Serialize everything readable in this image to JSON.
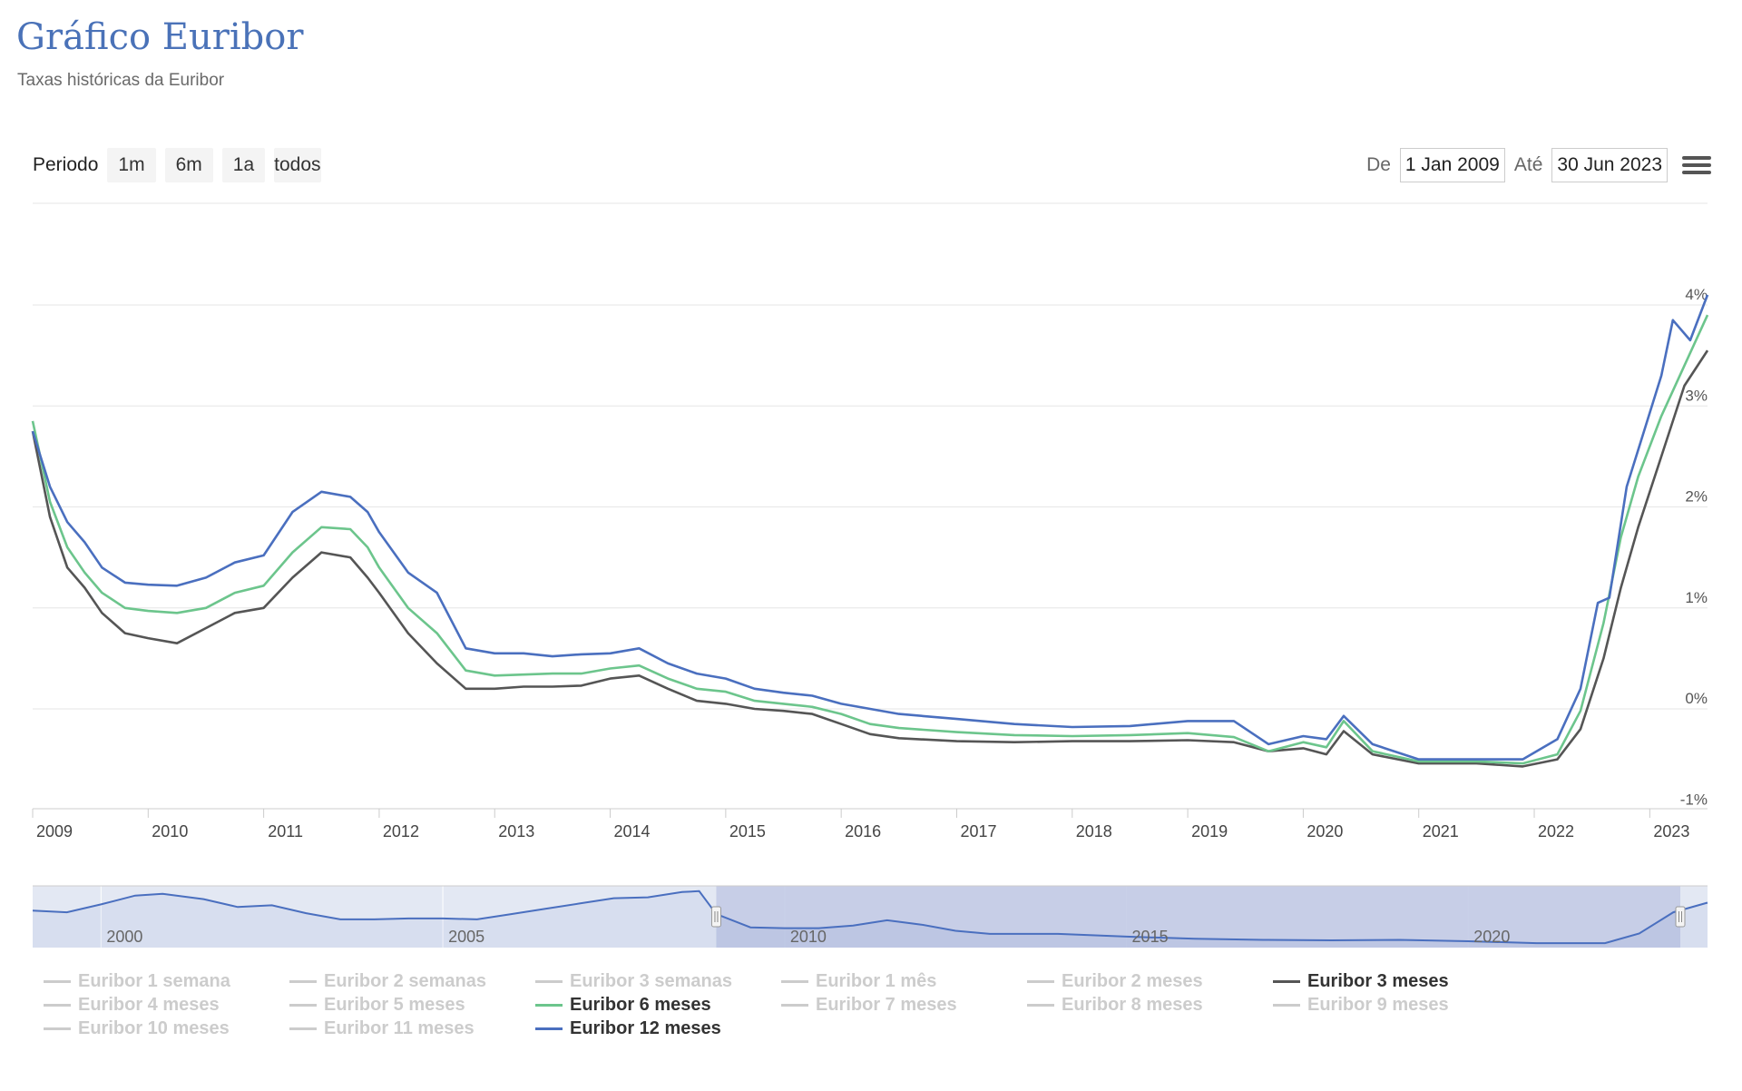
{
  "header": {
    "title": "Gráfico Euribor",
    "subtitle": "Taxas históricas da Euribor"
  },
  "range_selector": {
    "label": "Periodo",
    "buttons": [
      "1m",
      "6m",
      "1a",
      "todos"
    ]
  },
  "date_inputs": {
    "from_label": "De",
    "from_value": "1 Jan 2009",
    "to_label": "Até",
    "to_value": "30 Jun 2023"
  },
  "icons": {
    "menu": "hamburger-menu-icon",
    "corner": "corner-triangle-icon"
  },
  "colors": {
    "euribor_3m": "#555555",
    "euribor_6m": "#6cc58c",
    "euribor_12m": "#4a6fbf",
    "grid": "#e6e6e6",
    "navigator_mask": "#c3cbe6"
  },
  "chart_data": {
    "type": "line",
    "xlim": [
      2009.0,
      2023.5
    ],
    "ylim": [
      -1,
      4
    ],
    "x_ticks": [
      2009,
      2010,
      2011,
      2012,
      2013,
      2014,
      2015,
      2016,
      2017,
      2018,
      2019,
      2020,
      2021,
      2022,
      2023
    ],
    "y_ticks": [
      -1,
      0,
      1,
      2,
      3,
      4
    ],
    "y_tick_labels": [
      "-1%",
      "0%",
      "1%",
      "2%",
      "3%",
      "4%"
    ],
    "grid": true,
    "legend_position": "bottom",
    "series": [
      {
        "name": "Euribor 3 meses",
        "color": "#555555",
        "visible": true,
        "points": [
          [
            2009.0,
            2.75
          ],
          [
            2009.15,
            1.9
          ],
          [
            2009.3,
            1.4
          ],
          [
            2009.45,
            1.2
          ],
          [
            2009.6,
            0.95
          ],
          [
            2009.8,
            0.75
          ],
          [
            2010.0,
            0.7
          ],
          [
            2010.25,
            0.65
          ],
          [
            2010.5,
            0.8
          ],
          [
            2010.75,
            0.95
          ],
          [
            2011.0,
            1.0
          ],
          [
            2011.25,
            1.3
          ],
          [
            2011.5,
            1.55
          ],
          [
            2011.75,
            1.5
          ],
          [
            2011.9,
            1.3
          ],
          [
            2012.0,
            1.15
          ],
          [
            2012.25,
            0.75
          ],
          [
            2012.5,
            0.45
          ],
          [
            2012.75,
            0.2
          ],
          [
            2013.0,
            0.2
          ],
          [
            2013.25,
            0.22
          ],
          [
            2013.5,
            0.22
          ],
          [
            2013.75,
            0.23
          ],
          [
            2014.0,
            0.3
          ],
          [
            2014.25,
            0.33
          ],
          [
            2014.5,
            0.2
          ],
          [
            2014.75,
            0.08
          ],
          [
            2015.0,
            0.05
          ],
          [
            2015.25,
            0.0
          ],
          [
            2015.5,
            -0.02
          ],
          [
            2015.75,
            -0.05
          ],
          [
            2016.0,
            -0.15
          ],
          [
            2016.25,
            -0.25
          ],
          [
            2016.5,
            -0.29
          ],
          [
            2017.0,
            -0.32
          ],
          [
            2017.5,
            -0.33
          ],
          [
            2018.0,
            -0.32
          ],
          [
            2018.5,
            -0.32
          ],
          [
            2019.0,
            -0.31
          ],
          [
            2019.4,
            -0.33
          ],
          [
            2019.7,
            -0.42
          ],
          [
            2020.0,
            -0.39
          ],
          [
            2020.2,
            -0.45
          ],
          [
            2020.35,
            -0.22
          ],
          [
            2020.6,
            -0.45
          ],
          [
            2021.0,
            -0.54
          ],
          [
            2021.5,
            -0.54
          ],
          [
            2021.9,
            -0.57
          ],
          [
            2022.2,
            -0.5
          ],
          [
            2022.4,
            -0.2
          ],
          [
            2022.6,
            0.5
          ],
          [
            2022.75,
            1.2
          ],
          [
            2022.9,
            1.8
          ],
          [
            2023.1,
            2.5
          ],
          [
            2023.3,
            3.2
          ],
          [
            2023.5,
            3.55
          ]
        ]
      },
      {
        "name": "Euribor 6 meses",
        "color": "#6cc58c",
        "visible": true,
        "points": [
          [
            2009.0,
            2.85
          ],
          [
            2009.15,
            2.05
          ],
          [
            2009.3,
            1.6
          ],
          [
            2009.45,
            1.35
          ],
          [
            2009.6,
            1.15
          ],
          [
            2009.8,
            1.0
          ],
          [
            2010.0,
            0.97
          ],
          [
            2010.25,
            0.95
          ],
          [
            2010.5,
            1.0
          ],
          [
            2010.75,
            1.15
          ],
          [
            2011.0,
            1.22
          ],
          [
            2011.25,
            1.55
          ],
          [
            2011.5,
            1.8
          ],
          [
            2011.75,
            1.78
          ],
          [
            2011.9,
            1.6
          ],
          [
            2012.0,
            1.4
          ],
          [
            2012.25,
            1.0
          ],
          [
            2012.5,
            0.75
          ],
          [
            2012.75,
            0.38
          ],
          [
            2013.0,
            0.33
          ],
          [
            2013.25,
            0.34
          ],
          [
            2013.5,
            0.35
          ],
          [
            2013.75,
            0.35
          ],
          [
            2014.0,
            0.4
          ],
          [
            2014.25,
            0.43
          ],
          [
            2014.5,
            0.3
          ],
          [
            2014.75,
            0.2
          ],
          [
            2015.0,
            0.17
          ],
          [
            2015.25,
            0.08
          ],
          [
            2015.5,
            0.05
          ],
          [
            2015.75,
            0.02
          ],
          [
            2016.0,
            -0.05
          ],
          [
            2016.25,
            -0.15
          ],
          [
            2016.5,
            -0.19
          ],
          [
            2017.0,
            -0.23
          ],
          [
            2017.5,
            -0.26
          ],
          [
            2018.0,
            -0.27
          ],
          [
            2018.5,
            -0.26
          ],
          [
            2019.0,
            -0.24
          ],
          [
            2019.4,
            -0.28
          ],
          [
            2019.7,
            -0.42
          ],
          [
            2020.0,
            -0.33
          ],
          [
            2020.2,
            -0.38
          ],
          [
            2020.35,
            -0.12
          ],
          [
            2020.6,
            -0.42
          ],
          [
            2021.0,
            -0.52
          ],
          [
            2021.5,
            -0.52
          ],
          [
            2021.9,
            -0.54
          ],
          [
            2022.2,
            -0.45
          ],
          [
            2022.4,
            -0.02
          ],
          [
            2022.6,
            0.85
          ],
          [
            2022.75,
            1.7
          ],
          [
            2022.9,
            2.3
          ],
          [
            2023.1,
            2.9
          ],
          [
            2023.3,
            3.4
          ],
          [
            2023.5,
            3.9
          ]
        ]
      },
      {
        "name": "Euribor 12 meses",
        "color": "#4a6fbf",
        "visible": true,
        "points": [
          [
            2009.0,
            2.75
          ],
          [
            2009.15,
            2.2
          ],
          [
            2009.3,
            1.85
          ],
          [
            2009.45,
            1.65
          ],
          [
            2009.6,
            1.4
          ],
          [
            2009.8,
            1.25
          ],
          [
            2010.0,
            1.23
          ],
          [
            2010.25,
            1.22
          ],
          [
            2010.5,
            1.3
          ],
          [
            2010.75,
            1.45
          ],
          [
            2011.0,
            1.52
          ],
          [
            2011.25,
            1.95
          ],
          [
            2011.5,
            2.15
          ],
          [
            2011.75,
            2.1
          ],
          [
            2011.9,
            1.95
          ],
          [
            2012.0,
            1.75
          ],
          [
            2012.25,
            1.35
          ],
          [
            2012.5,
            1.15
          ],
          [
            2012.75,
            0.6
          ],
          [
            2013.0,
            0.55
          ],
          [
            2013.25,
            0.55
          ],
          [
            2013.5,
            0.52
          ],
          [
            2013.75,
            0.54
          ],
          [
            2014.0,
            0.55
          ],
          [
            2014.25,
            0.6
          ],
          [
            2014.5,
            0.45
          ],
          [
            2014.75,
            0.35
          ],
          [
            2015.0,
            0.3
          ],
          [
            2015.25,
            0.2
          ],
          [
            2015.5,
            0.16
          ],
          [
            2015.75,
            0.13
          ],
          [
            2016.0,
            0.05
          ],
          [
            2016.25,
            0.0
          ],
          [
            2016.5,
            -0.05
          ],
          [
            2017.0,
            -0.1
          ],
          [
            2017.5,
            -0.15
          ],
          [
            2018.0,
            -0.18
          ],
          [
            2018.5,
            -0.17
          ],
          [
            2019.0,
            -0.12
          ],
          [
            2019.4,
            -0.12
          ],
          [
            2019.7,
            -0.35
          ],
          [
            2020.0,
            -0.27
          ],
          [
            2020.2,
            -0.3
          ],
          [
            2020.35,
            -0.07
          ],
          [
            2020.6,
            -0.35
          ],
          [
            2021.0,
            -0.5
          ],
          [
            2021.5,
            -0.5
          ],
          [
            2021.9,
            -0.5
          ],
          [
            2022.2,
            -0.3
          ],
          [
            2022.4,
            0.2
          ],
          [
            2022.55,
            1.05
          ],
          [
            2022.65,
            1.1
          ],
          [
            2022.8,
            2.2
          ],
          [
            2022.95,
            2.75
          ],
          [
            2023.1,
            3.3
          ],
          [
            2023.2,
            3.85
          ],
          [
            2023.35,
            3.65
          ],
          [
            2023.5,
            4.1
          ]
        ]
      }
    ],
    "legend": [
      {
        "name": "Euribor 1 semana",
        "visible": false
      },
      {
        "name": "Euribor 2 semanas",
        "visible": false
      },
      {
        "name": "Euribor 3 semanas",
        "visible": false
      },
      {
        "name": "Euribor 1 mês",
        "visible": false
      },
      {
        "name": "Euribor 2 meses",
        "visible": false
      },
      {
        "name": "Euribor 3 meses",
        "visible": true
      },
      {
        "name": "Euribor 4 meses",
        "visible": false
      },
      {
        "name": "Euribor 5 meses",
        "visible": false
      },
      {
        "name": "Euribor 6 meses",
        "visible": true
      },
      {
        "name": "Euribor 7 meses",
        "visible": false
      },
      {
        "name": "Euribor 8 meses",
        "visible": false
      },
      {
        "name": "Euribor 9 meses",
        "visible": false
      },
      {
        "name": "Euribor 10 meses",
        "visible": false
      },
      {
        "name": "Euribor 11 meses",
        "visible": false
      },
      {
        "name": "Euribor 12 meses",
        "visible": true
      }
    ],
    "navigator": {
      "xlim": [
        1999.0,
        2023.5
      ],
      "x_ticks": [
        2000,
        2005,
        2010,
        2015,
        2020
      ],
      "selected_range": [
        2009.0,
        2023.5
      ],
      "ylim": [
        -1,
        6
      ],
      "points": [
        [
          1999.0,
          3.2
        ],
        [
          1999.5,
          3.0
        ],
        [
          2000.0,
          3.9
        ],
        [
          2000.5,
          4.9
        ],
        [
          2000.9,
          5.1
        ],
        [
          2001.5,
          4.5
        ],
        [
          2002.0,
          3.6
        ],
        [
          2002.5,
          3.8
        ],
        [
          2003.0,
          2.9
        ],
        [
          2003.5,
          2.2
        ],
        [
          2004.0,
          2.2
        ],
        [
          2004.5,
          2.3
        ],
        [
          2005.0,
          2.3
        ],
        [
          2005.5,
          2.2
        ],
        [
          2006.0,
          2.8
        ],
        [
          2006.5,
          3.4
        ],
        [
          2007.0,
          4.0
        ],
        [
          2007.5,
          4.6
        ],
        [
          2008.0,
          4.7
        ],
        [
          2008.5,
          5.3
        ],
        [
          2008.75,
          5.4
        ],
        [
          2009.0,
          2.8
        ],
        [
          2009.5,
          1.3
        ],
        [
          2010.0,
          1.2
        ],
        [
          2010.5,
          1.2
        ],
        [
          2011.0,
          1.5
        ],
        [
          2011.5,
          2.1
        ],
        [
          2012.0,
          1.6
        ],
        [
          2012.5,
          0.9
        ],
        [
          2013.0,
          0.55
        ],
        [
          2014.0,
          0.55
        ],
        [
          2015.0,
          0.25
        ],
        [
          2016.0,
          0.0
        ],
        [
          2017.0,
          -0.12
        ],
        [
          2018.0,
          -0.18
        ],
        [
          2019.0,
          -0.12
        ],
        [
          2020.0,
          -0.28
        ],
        [
          2021.0,
          -0.5
        ],
        [
          2022.0,
          -0.5
        ],
        [
          2022.5,
          0.6
        ],
        [
          2023.0,
          3.0
        ],
        [
          2023.5,
          4.1
        ]
      ]
    }
  }
}
